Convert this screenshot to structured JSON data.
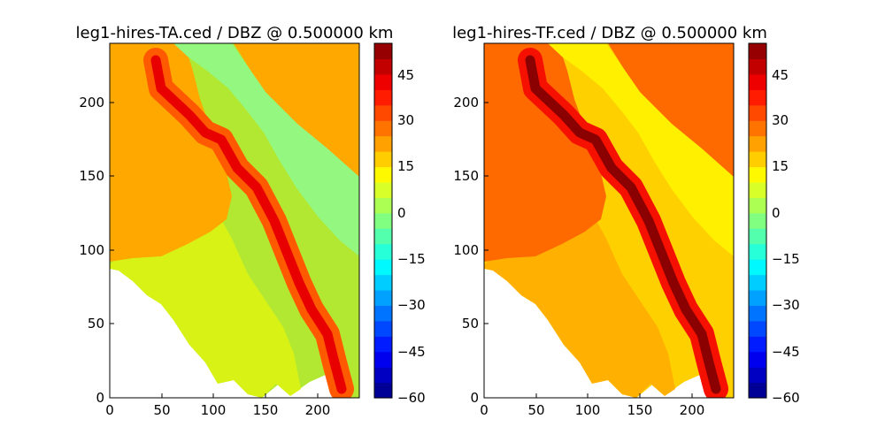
{
  "chart_data": [
    {
      "type": "heatmap",
      "title": "leg1-hires-TA.ced / DBZ @ 0.500000 km",
      "xlabel": "",
      "ylabel": "",
      "xlim": [
        0,
        240
      ],
      "ylim": [
        0,
        240
      ],
      "x_ticks": [
        "0",
        "50",
        "100",
        "150",
        "200"
      ],
      "y_ticks": [
        "0",
        "50",
        "100",
        "150",
        "200"
      ],
      "grid": false,
      "colorbar": {
        "ticks": [
          "−60",
          "−45",
          "−30",
          "−15",
          "0",
          "15",
          "30",
          "45"
        ],
        "range": [
          -60,
          55
        ],
        "colormap": "jet"
      },
      "echo": {
        "line_core_dbz": 50,
        "line_halo_dbz": 40,
        "stratiform_region_dbz": 24,
        "trailing_band_dbz": 3,
        "rear_fringe_dbz": 10
      }
    },
    {
      "type": "heatmap",
      "title": "leg1-hires-TF.ced / DBZ @ 0.500000 km",
      "xlabel": "",
      "ylabel": "",
      "xlim": [
        0,
        240
      ],
      "ylim": [
        0,
        240
      ],
      "x_ticks": [
        "0",
        "50",
        "100",
        "150",
        "200"
      ],
      "y_ticks": [
        "0",
        "50",
        "100",
        "150",
        "200"
      ],
      "grid": false,
      "colorbar": {
        "ticks": [
          "−60",
          "−45",
          "−30",
          "−15",
          "0",
          "15",
          "30",
          "45"
        ],
        "range": [
          -60,
          55
        ],
        "colormap": "jet"
      },
      "echo": {
        "line_core_dbz": 55,
        "line_halo_dbz": 44,
        "stratiform_region_dbz": 36,
        "trailing_band_dbz": 14,
        "rear_fringe_dbz": 20
      }
    }
  ]
}
